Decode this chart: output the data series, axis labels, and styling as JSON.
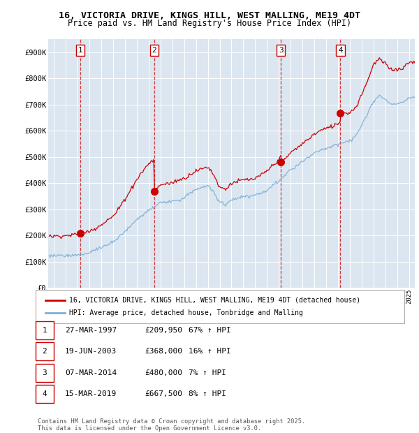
{
  "title1": "16, VICTORIA DRIVE, KINGS HILL, WEST MALLING, ME19 4DT",
  "title2": "Price paid vs. HM Land Registry's House Price Index (HPI)",
  "plot_bg_color": "#dce6f0",
  "sale_color": "#cc0000",
  "hpi_color": "#7bafd4",
  "sale_label": "16, VICTORIA DRIVE, KINGS HILL, WEST MALLING, ME19 4DT (detached house)",
  "hpi_label": "HPI: Average price, detached house, Tonbridge and Malling",
  "transactions": [
    {
      "num": 1,
      "date": "27-MAR-1997",
      "date_x": 1997.23,
      "price": 209950,
      "hpi_pct": "67% ↑ HPI"
    },
    {
      "num": 2,
      "date": "19-JUN-2003",
      "date_x": 2003.46,
      "price": 368000,
      "hpi_pct": "16% ↑ HPI"
    },
    {
      "num": 3,
      "date": "07-MAR-2014",
      "date_x": 2014.18,
      "price": 480000,
      "hpi_pct": "7% ↑ HPI"
    },
    {
      "num": 4,
      "date": "15-MAR-2019",
      "date_x": 2019.21,
      "price": 667500,
      "hpi_pct": "8% ↑ HPI"
    }
  ],
  "footer": "Contains HM Land Registry data © Crown copyright and database right 2025.\nThis data is licensed under the Open Government Licence v3.0.",
  "xlim": [
    1994.5,
    2025.5
  ],
  "ylim": [
    0,
    950000
  ],
  "yticks": [
    0,
    100000,
    200000,
    300000,
    400000,
    500000,
    600000,
    700000,
    800000,
    900000
  ],
  "ytick_labels": [
    "£0",
    "£100K",
    "£200K",
    "£300K",
    "£400K",
    "£500K",
    "£600K",
    "£700K",
    "£800K",
    "£900K"
  ]
}
